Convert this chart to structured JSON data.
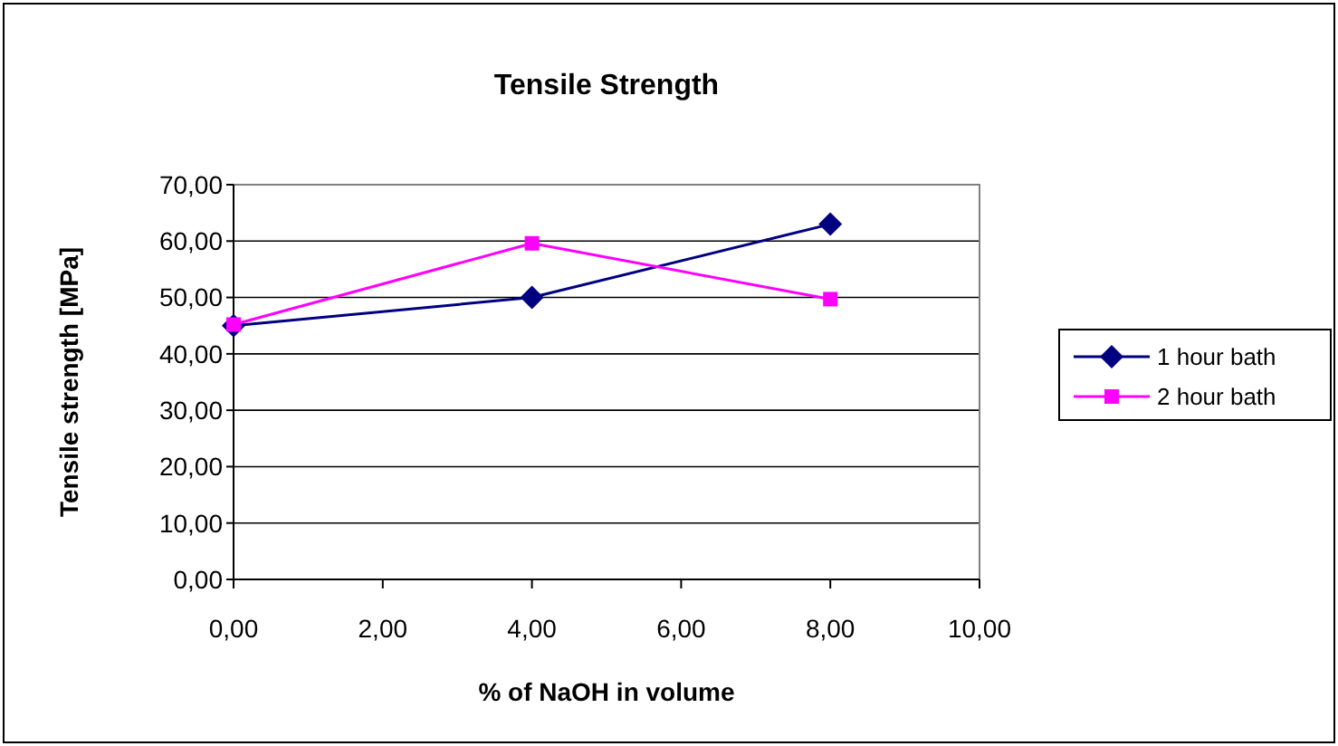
{
  "chart_data": {
    "type": "line",
    "title": "Tensile Strength",
    "xlabel": "% of NaOH in volume",
    "ylabel": "Tensile strength [MPa]",
    "x": [
      0,
      4,
      8
    ],
    "series": [
      {
        "name": "1 hour bath",
        "color": "#000080",
        "marker": "diamond",
        "values": [
          45,
          50,
          63
        ]
      },
      {
        "name": "2 hour bath",
        "color": "#ff00ff",
        "marker": "square",
        "values": [
          45.2,
          59.6,
          49.7
        ]
      }
    ],
    "xlim": [
      0,
      10
    ],
    "ylim": [
      0,
      70
    ],
    "xticks": [
      {
        "value": 0,
        "label": "0,00"
      },
      {
        "value": 2,
        "label": "2,00"
      },
      {
        "value": 4,
        "label": "4,00"
      },
      {
        "value": 6,
        "label": "6,00"
      },
      {
        "value": 8,
        "label": "8,00"
      },
      {
        "value": 10,
        "label": "10,00"
      }
    ],
    "yticks": [
      {
        "value": 0,
        "label": "0,00"
      },
      {
        "value": 10,
        "label": "10,00"
      },
      {
        "value": 20,
        "label": "20,00"
      },
      {
        "value": 30,
        "label": "30,00"
      },
      {
        "value": 40,
        "label": "40,00"
      },
      {
        "value": 50,
        "label": "50,00"
      },
      {
        "value": 60,
        "label": "60,00"
      },
      {
        "value": 70,
        "label": "70,00"
      }
    ],
    "grid": "y",
    "legend": "right",
    "line_style": "solid"
  }
}
